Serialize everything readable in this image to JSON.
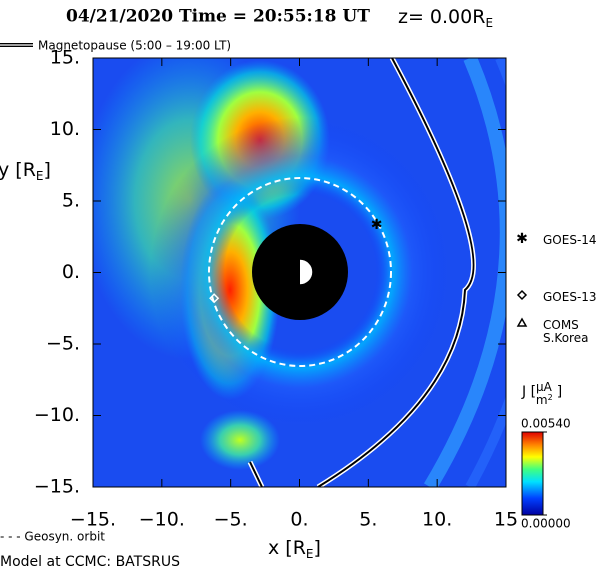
{
  "chart_data": {
    "type": "scatter",
    "title": "04/21/2020 Time = 20:55:18 UT",
    "z_label": "z= 0.00R",
    "z_label_sub": "E",
    "magnetopause_label": "Magnetopause (5:00 – 19:00 LT)",
    "x_label": [
      "x [R",
      "E",
      "]"
    ],
    "y_label": [
      "y [R",
      "E",
      "]"
    ],
    "geosyn_label": "- - - Geosyn. orbit",
    "footer": "Model at CCMC: BATSRUS",
    "xlim": [
      -15,
      15
    ],
    "ylim": [
      -15,
      15
    ],
    "xticks": [
      {
        "value": -15,
        "label": "−15."
      },
      {
        "value": -10,
        "label": "−10."
      },
      {
        "value": -5,
        "label": "−5."
      },
      {
        "value": 0,
        "label": "0."
      },
      {
        "value": 5,
        "label": "5."
      },
      {
        "value": 10,
        "label": "10."
      },
      15
    ],
    "yticks": [
      {
        "value": 15,
        "label": "15."
      },
      {
        "value": 10,
        "label": "10."
      },
      {
        "value": 5,
        "label": "5."
      },
      {
        "value": 0,
        "label": "0."
      },
      {
        "value": -5,
        "label": "−5."
      },
      {
        "value": -10,
        "label": "−10."
      },
      {
        "value": -15,
        "label": "−15."
      }
    ],
    "series": [
      {
        "name": "GOES-14",
        "symbol": "star",
        "color": "#ffffff",
        "x": [
          5.6
        ],
        "values": [
          3.4
        ]
      },
      {
        "name": "GOES-13",
        "symbol": "diamond",
        "color": "#ffffff",
        "x": [
          -6.2
        ],
        "values": [
          -1.8
        ]
      },
      {
        "name": "COMS\nS.Korea",
        "symbol": "triangle",
        "color": "#ffffff",
        "x": [],
        "values": []
      }
    ],
    "colorbar": {
      "label": {
        "prefix": "J [",
        "num": "μA",
        "den": "m",
        "den_sup": "2",
        "suffix": "]"
      },
      "lim": [
        0,
        0.0054
      ],
      "ticks": [
        {
          "value": 0,
          "label": "0.00000"
        },
        {
          "value": 0.0054,
          "label": "0.00540"
        }
      ]
    }
  }
}
